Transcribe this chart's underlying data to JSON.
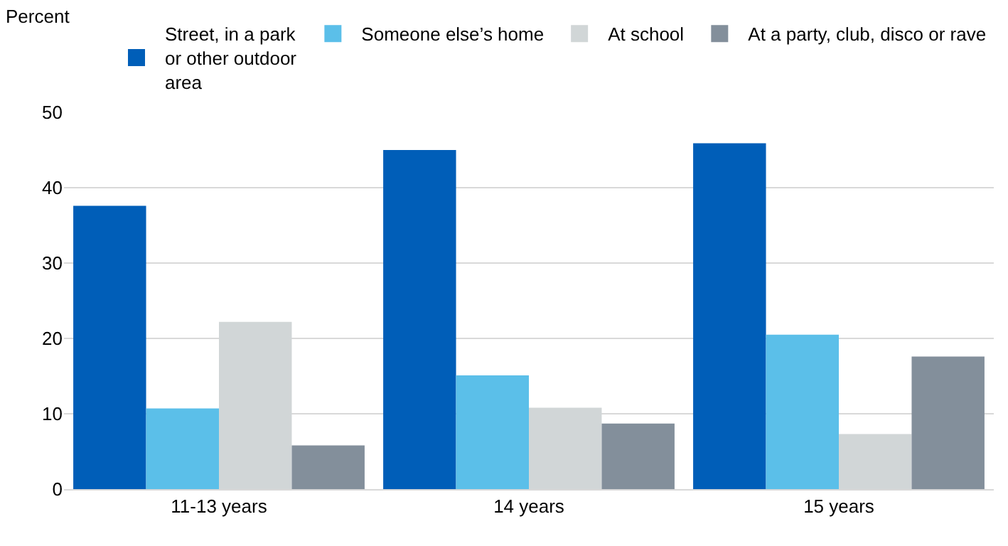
{
  "chart_data": {
    "type": "bar",
    "ylabel": "Percent",
    "categories": [
      "11-13 years",
      "14 years",
      "15 years"
    ],
    "series": [
      {
        "name": "Street, in a park or other outdoor area",
        "color": "#005eb8",
        "values": [
          37.6,
          45.0,
          45.9
        ]
      },
      {
        "name": "Someone else’s home",
        "color": "#5bbfe9",
        "values": [
          10.7,
          15.1,
          20.5
        ]
      },
      {
        "name": "At school",
        "color": "#d1d6d7",
        "values": [
          22.2,
          10.8,
          7.3
        ]
      },
      {
        "name": "At a party, club, disco or rave",
        "color": "#838f9b",
        "values": [
          5.8,
          8.7,
          17.6
        ]
      }
    ],
    "ylim": [
      0,
      50
    ],
    "yticks": [
      0,
      10,
      20,
      30,
      40,
      50
    ],
    "grid": "y",
    "legend": "top"
  }
}
